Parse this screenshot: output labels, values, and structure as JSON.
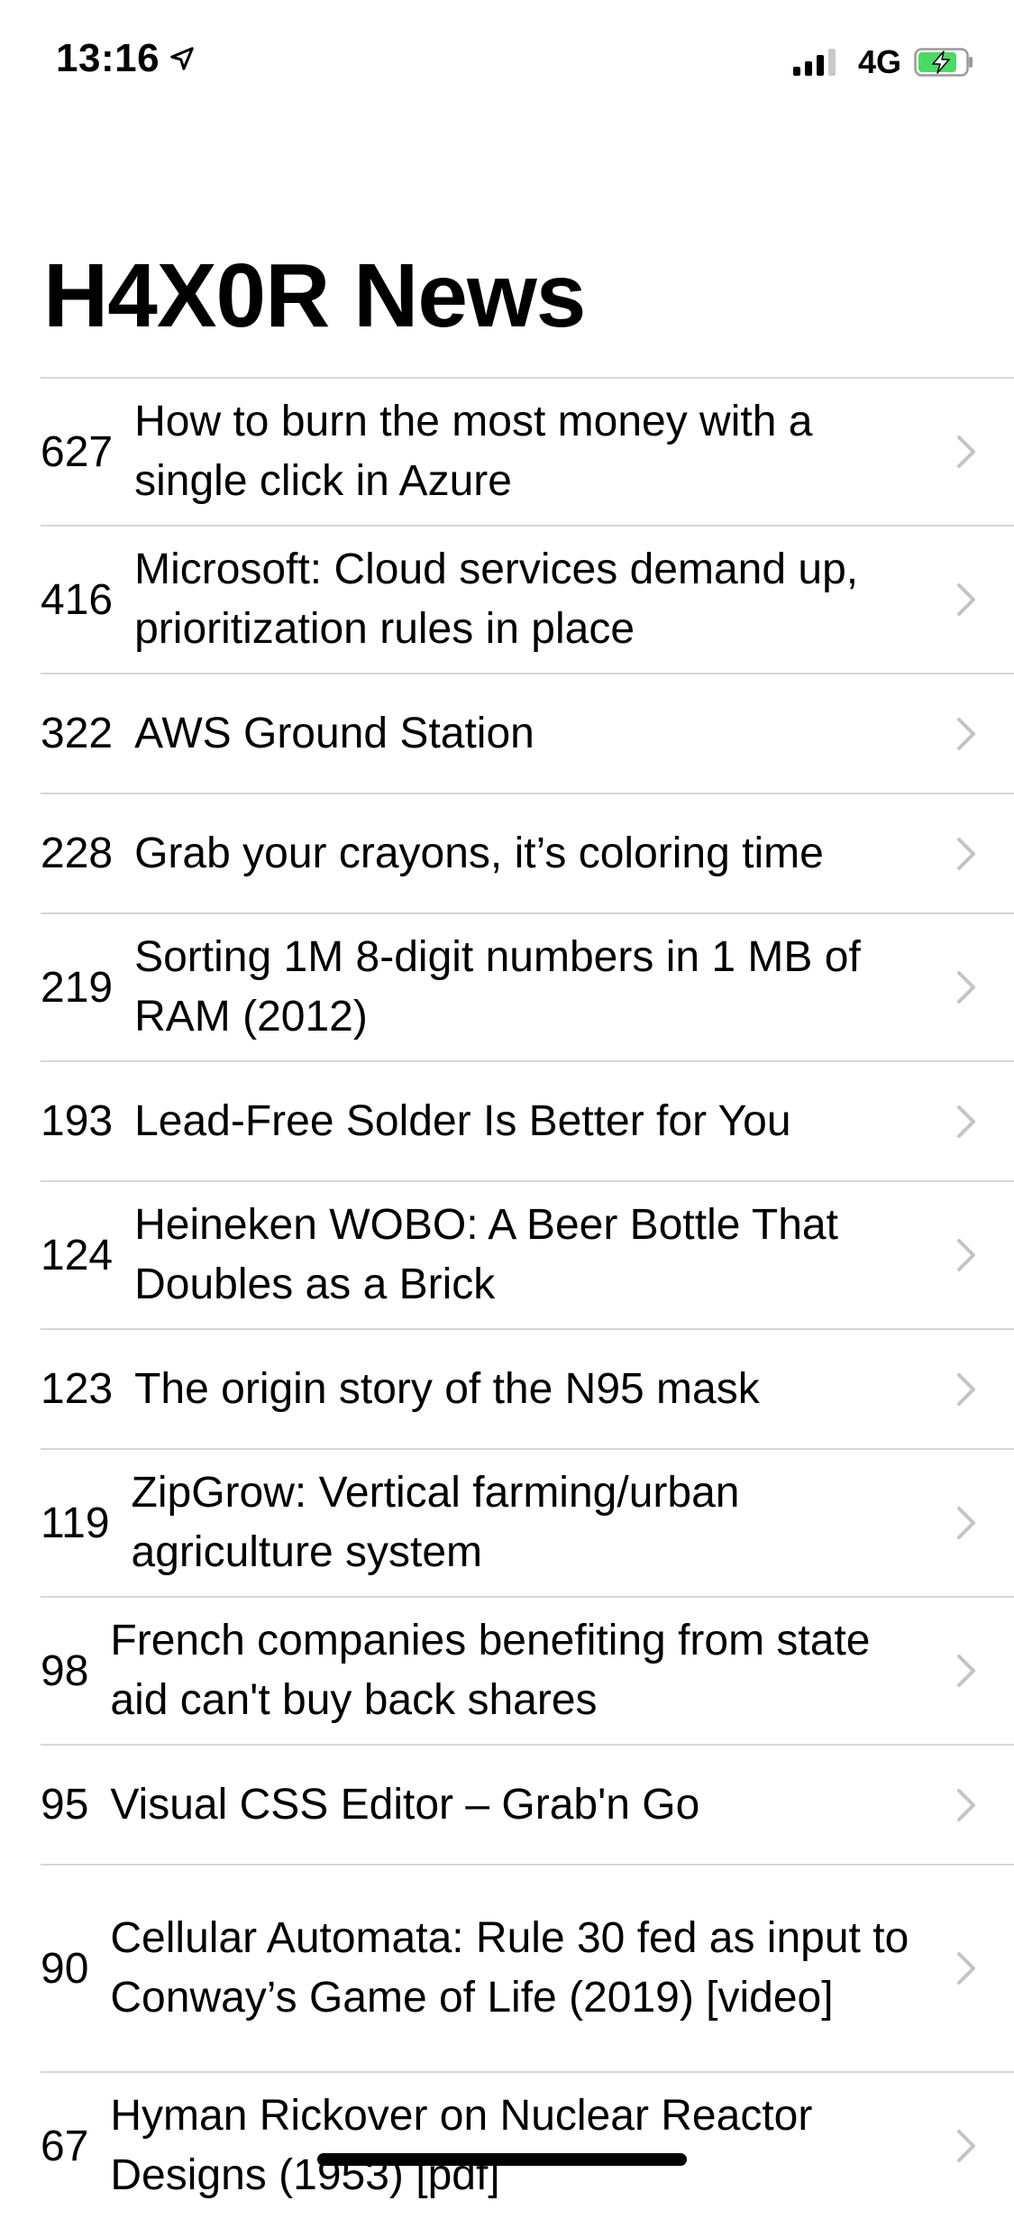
{
  "status_bar": {
    "time": "13:16",
    "network": "4G",
    "battery_color": "#4cd964"
  },
  "header": {
    "title": "H4X0R News"
  },
  "stories": [
    {
      "score": "627",
      "title": "How to burn the most money with a single click in Azure"
    },
    {
      "score": "416",
      "title": "Microsoft: Cloud services demand up, prioritization rules in place"
    },
    {
      "score": "322",
      "title": "AWS Ground Station"
    },
    {
      "score": "228",
      "title": "Grab your crayons, it’s coloring time"
    },
    {
      "score": "219",
      "title": "Sorting 1M 8-digit numbers in 1 MB of RAM (2012)"
    },
    {
      "score": "193",
      "title": "Lead-Free Solder Is Better for You"
    },
    {
      "score": "124",
      "title": "Heineken WOBO: A Beer Bottle That Doubles as a Brick"
    },
    {
      "score": "123",
      "title": "The origin story of the N95 mask"
    },
    {
      "score": "119",
      "title": "ZipGrow: Vertical farming/urban agriculture system"
    },
    {
      "score": "98",
      "title": "French companies benefiting from state aid can't buy back shares"
    },
    {
      "score": "95",
      "title": "Visual CSS Editor – Grab'n Go"
    },
    {
      "score": "90",
      "title": "Cellular Automata: Rule 30 fed as input to Conway’s Game of Life (2019) [video]"
    },
    {
      "score": "67",
      "title": "Hyman Rickover on Nuclear Reactor Designs (1953) [pdf]"
    }
  ],
  "icons": {
    "chevron": "chevron-right-icon",
    "location": "location-arrow-icon",
    "signal": "cellular-signal-icon",
    "battery": "battery-charging-icon"
  }
}
